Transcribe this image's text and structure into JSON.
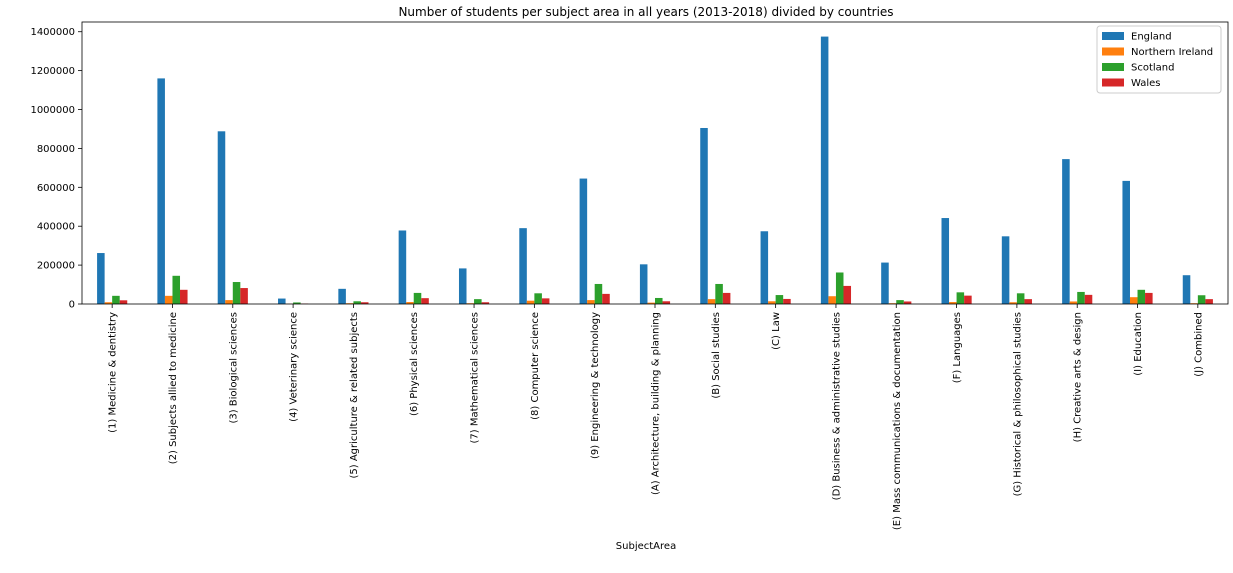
{
  "chart_data": {
    "type": "bar",
    "title": "Number of students per subject area in all years (2013-2018) divided by countries",
    "xlabel": "SubjectArea",
    "ylabel": "",
    "ylim": [
      0,
      1450000
    ],
    "yticks": [
      0,
      200000,
      400000,
      600000,
      800000,
      1000000,
      1200000,
      1400000
    ],
    "legend_position": "top-right",
    "categories": [
      "(1) Medicine & dentistry",
      "(2) Subjects allied to medicine",
      "(3) Biological sciences",
      "(4) Veterinary science",
      "(5) Agriculture & related subjects",
      "(6) Physical sciences",
      "(7) Mathematical sciences",
      "(8) Computer science",
      "(9) Engineering & technology",
      "(A) Architecture, building & planning",
      "(B) Social studies",
      "(C) Law",
      "(D) Business & administrative studies",
      "(E) Mass communications & documentation",
      "(F) Languages",
      "(G) Historical & philosophical studies",
      "(H) Creative arts & design",
      "(I) Education",
      "(J) Combined"
    ],
    "series": [
      {
        "name": "England",
        "color": "#1f77b4",
        "values": [
          262000,
          1160000,
          888000,
          28000,
          78000,
          378000,
          183000,
          390000,
          645000,
          204000,
          905000,
          374000,
          1375000,
          213000,
          442000,
          348000,
          745000,
          633000,
          148000
        ]
      },
      {
        "name": "Northern Ireland",
        "color": "#ff7f0e",
        "values": [
          9000,
          42000,
          20000,
          1000,
          4000,
          10000,
          4000,
          17000,
          20000,
          7000,
          25000,
          14000,
          40000,
          4000,
          10000,
          9000,
          13000,
          35000,
          4000
        ]
      },
      {
        "name": "Scotland",
        "color": "#2ca02c",
        "values": [
          42000,
          145000,
          113000,
          8000,
          14000,
          57000,
          25000,
          55000,
          103000,
          31000,
          103000,
          46000,
          162000,
          20000,
          60000,
          55000,
          62000,
          73000,
          45000
        ]
      },
      {
        "name": "Wales",
        "color": "#d62728",
        "values": [
          19000,
          73000,
          82000,
          2000,
          9000,
          30000,
          9000,
          29000,
          52000,
          14000,
          57000,
          26000,
          93000,
          13000,
          43000,
          25000,
          47000,
          57000,
          25000
        ]
      }
    ]
  }
}
